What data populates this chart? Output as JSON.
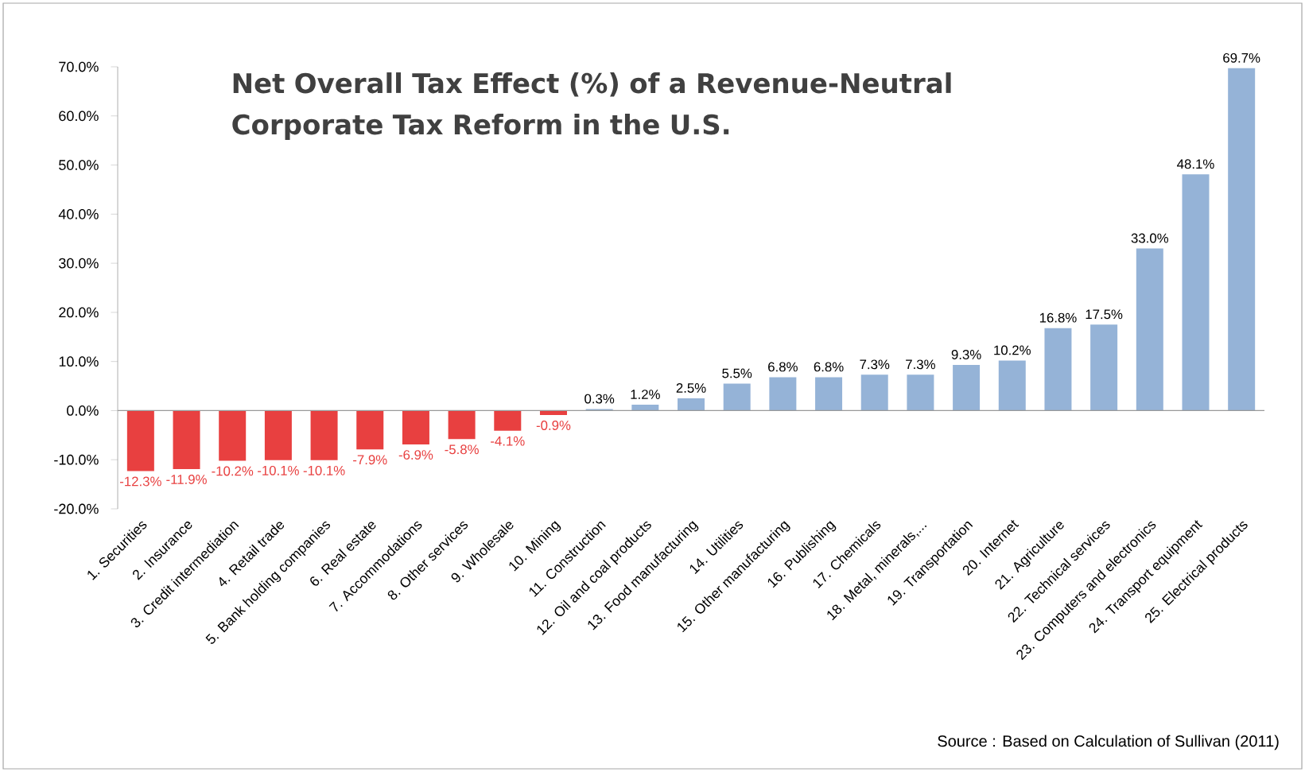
{
  "chart_data": {
    "type": "bar",
    "title": "Net Overall Tax Effect (%) of a Revenue-Neutral Corporate Tax Reform in the U.S.",
    "categories": [
      "1. Securities",
      "2. Insurance",
      "3. Credit intermediation",
      "4. Retail trade",
      "5. Bank holding companies",
      "6. Real estate",
      "7. Accommodations",
      "8. Other services",
      "9. Wholesale",
      "10. Mining",
      "11. Construction",
      "12. Oil and coal products",
      "13. Food manufacturing",
      "14. Utilities",
      "15. Other manufacturing",
      "16. Publishing",
      "17. Chemicals",
      "18. Metal, minerals,...",
      "19. Transportation",
      "20. Internet",
      "21. Agriculture",
      "22. Technical services",
      "23. Computers and  electronics",
      "24. Transport equipment",
      "25. Electrical  products"
    ],
    "values": [
      -12.3,
      -11.9,
      -10.2,
      -10.1,
      -10.1,
      -7.9,
      -6.9,
      -5.8,
      -4.1,
      -0.9,
      0.3,
      1.2,
      2.5,
      5.5,
      6.8,
      6.8,
      7.3,
      7.3,
      9.3,
      10.2,
      16.8,
      17.5,
      33.0,
      48.1,
      69.7
    ],
    "value_labels": [
      "-12.3%",
      "-11.9%",
      "-10.2%",
      "-10.1%",
      "-10.1%",
      "-7.9%",
      "-6.9%",
      "-5.8%",
      "-4.1%",
      "-0.9%",
      "0.3%",
      "1.2%",
      "2.5%",
      "5.5%",
      "6.8%",
      "6.8%",
      "7.3%",
      "7.3%",
      "9.3%",
      "10.2%",
      "16.8%",
      "17.5%",
      "33.0%",
      "48.1%",
      "69.7%"
    ],
    "colors": [
      "#e84040",
      "#e84040",
      "#e84040",
      "#e84040",
      "#e84040",
      "#e84040",
      "#e84040",
      "#e84040",
      "#e84040",
      "#e84040",
      "#95b3d7",
      "#95b3d7",
      "#95b3d7",
      "#95b3d7",
      "#95b3d7",
      "#95b3d7",
      "#95b3d7",
      "#95b3d7",
      "#95b3d7",
      "#95b3d7",
      "#95b3d7",
      "#95b3d7",
      "#95b3d7",
      "#95b3d7",
      "#95b3d7"
    ],
    "ylim": [
      -20,
      70
    ],
    "yticks": [
      {
        "value": -20,
        "label": "-20.0%"
      },
      {
        "value": -10,
        "label": "-10.0%"
      },
      {
        "value": 0,
        "label": "0.0%"
      },
      {
        "value": 10,
        "label": "10.0%"
      },
      {
        "value": 20,
        "label": "20.0%"
      },
      {
        "value": 30,
        "label": "30.0%"
      },
      {
        "value": 40,
        "label": "40.0%"
      },
      {
        "value": 50,
        "label": "50.0%"
      },
      {
        "value": 60,
        "label": "60.0%"
      },
      {
        "value": 70,
        "label": "70.0%"
      }
    ],
    "annotations": [
      "Source : Based on Calculation of Sullivan (2011)"
    ]
  }
}
